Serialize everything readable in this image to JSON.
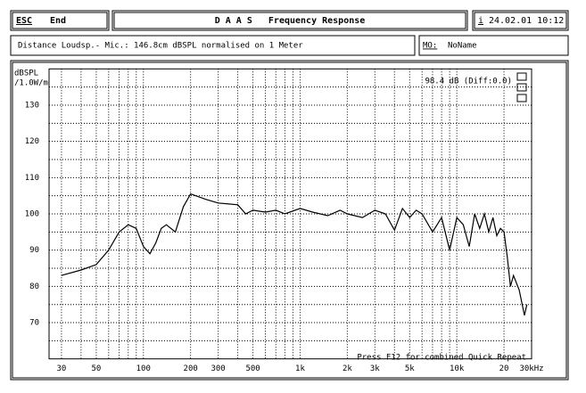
{
  "header": {
    "esc": "ESC",
    "end": "End",
    "title": "D A A S   Frequency Response",
    "info": "i",
    "date": "24.02.01 10:12",
    "distance": "Distance Loudsp.- Mic.: 146.8cm dBSPL normalised on 1 Meter",
    "mo": "MO:",
    "name": "NoName"
  },
  "chart_data": {
    "type": "line",
    "ylabel": "dBSPL",
    "ylabel2": "/1.0W/m",
    "annotation": "98.4 dB (Diff:0.0)",
    "footer": "Press F12 for combined Quick Repeat",
    "color": "#000000",
    "log_x": true,
    "grid": true,
    "xlim": [
      25,
      30000
    ],
    "ylim": [
      60,
      140
    ],
    "xticks": [
      30,
      50,
      100,
      200,
      300,
      500,
      {
        "value": 1000,
        "label": "1k"
      },
      {
        "value": 2000,
        "label": "2k"
      },
      {
        "value": 3000,
        "label": "3k"
      },
      {
        "value": 5000,
        "label": "5k"
      },
      {
        "value": 10000,
        "label": "10k"
      },
      {
        "value": 20000,
        "label": "20"
      },
      {
        "value": 30000,
        "label": "30kHz"
      }
    ],
    "xminor": [
      40,
      60,
      70,
      80,
      90,
      400,
      600,
      700,
      800,
      900,
      4000,
      6000,
      7000,
      8000,
      9000
    ],
    "yticks": [
      70,
      80,
      90,
      100,
      110,
      120,
      130
    ],
    "yminor": [
      65,
      75,
      85,
      95,
      105,
      115,
      125,
      135
    ],
    "x": [
      30,
      40,
      50,
      60,
      70,
      80,
      90,
      100,
      110,
      120,
      130,
      140,
      160,
      180,
      200,
      250,
      300,
      400,
      450,
      500,
      600,
      700,
      800,
      1000,
      1200,
      1500,
      1800,
      2000,
      2500,
      3000,
      3500,
      4000,
      4500,
      5000,
      5500,
      6000,
      7000,
      8000,
      9000,
      10000,
      11000,
      12000,
      13000,
      14000,
      15000,
      16000,
      17000,
      18000,
      19000,
      20000,
      21000,
      22000,
      23000,
      25000,
      27000,
      28000
    ],
    "values": [
      83,
      84.5,
      86,
      90,
      95,
      97,
      96,
      91,
      89,
      92,
      96,
      97,
      95,
      102,
      105.5,
      104,
      103,
      102.5,
      100,
      101,
      100.5,
      101,
      100,
      101.5,
      100.5,
      99.5,
      101,
      100,
      99,
      101,
      100,
      95.5,
      101.5,
      99,
      101,
      100,
      95,
      99,
      90,
      99,
      97,
      91,
      100,
      96,
      100,
      95,
      99,
      94,
      96,
      95,
      88,
      80,
      83,
      79,
      72,
      75
    ]
  }
}
